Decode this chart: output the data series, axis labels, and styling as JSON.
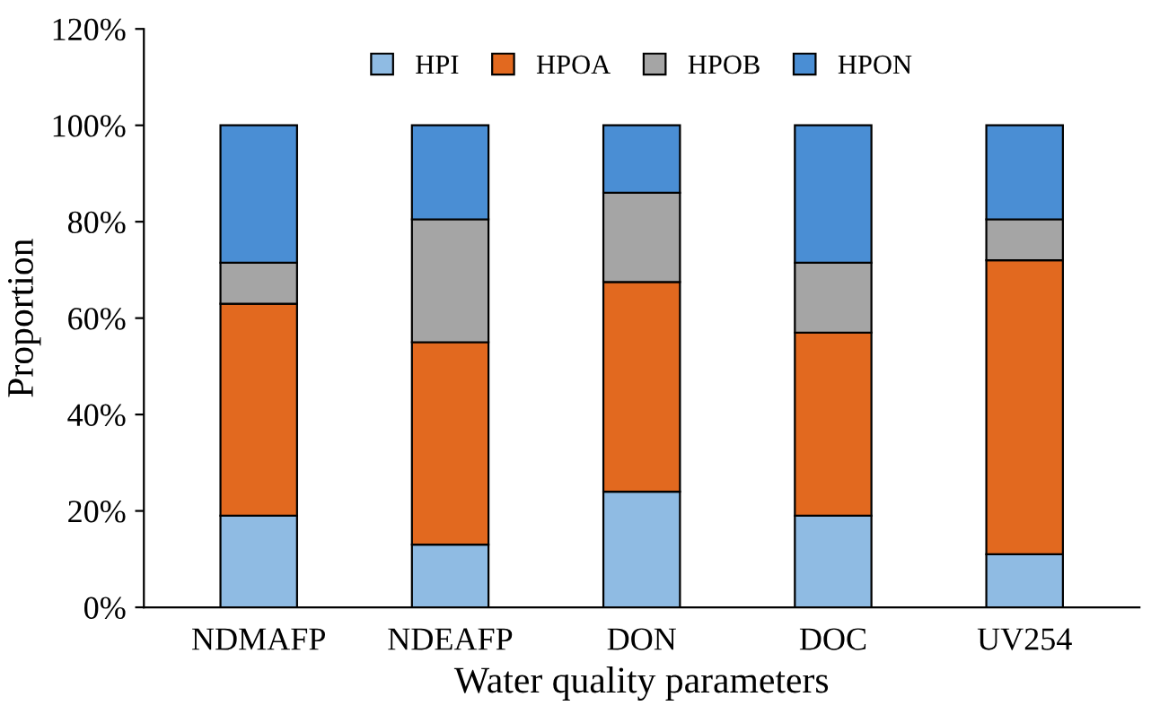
{
  "chart_data": {
    "type": "bar",
    "stacked": true,
    "xlabel": "Water quality parameters",
    "ylabel": "Proportion",
    "categories": [
      "NDMAFP",
      "NDEAFP",
      "DON",
      "DOC",
      "UV254"
    ],
    "series": [
      {
        "name": "HPI",
        "color": "#8fbbe3",
        "values": [
          19,
          13,
          24,
          19,
          11
        ]
      },
      {
        "name": "HPOA",
        "color": "#e2691f",
        "values": [
          44,
          42,
          43.5,
          38,
          61
        ]
      },
      {
        "name": "HPOB",
        "color": "#a5a5a5",
        "values": [
          8.5,
          25.5,
          18.5,
          14.5,
          8.5
        ]
      },
      {
        "name": "HPON",
        "color": "#4a8ed4",
        "values": [
          28.5,
          19.5,
          14,
          28.5,
          19.5
        ]
      }
    ],
    "ylim": [
      0,
      120
    ],
    "yticks": [
      {
        "value": 0,
        "label": "0%"
      },
      {
        "value": 20,
        "label": "20%"
      },
      {
        "value": 40,
        "label": "40%"
      },
      {
        "value": 60,
        "label": "60%"
      },
      {
        "value": 80,
        "label": "80%"
      },
      {
        "value": 100,
        "label": "100%"
      },
      {
        "value": 120,
        "label": "120%"
      }
    ],
    "legend": "top",
    "grid": false
  }
}
